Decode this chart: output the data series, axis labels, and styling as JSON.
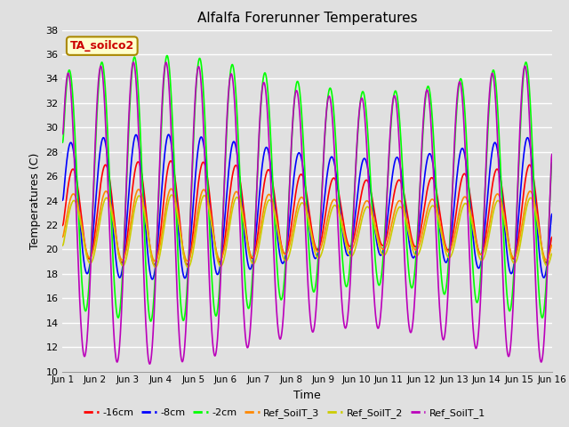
{
  "title": "Alfalfa Forerunner Temperatures",
  "xlabel": "Time",
  "ylabel": "Temperatures (C)",
  "ylim": [
    10,
    38
  ],
  "xlim": [
    0,
    15
  ],
  "annotation": "TA_soilco2",
  "annotation_color": "#cc0000",
  "annotation_bg": "#ffffcc",
  "annotation_border": "#aa8800",
  "background_color": "#e0e0e0",
  "plot_bg": "#e0e0e0",
  "grid_color": "#ffffff",
  "series": [
    {
      "label": "-16cm",
      "color": "#ff0000"
    },
    {
      "label": "-8cm",
      "color": "#0000ff"
    },
    {
      "label": "-2cm",
      "color": "#00ff00"
    },
    {
      "label": "Ref_SoilT_3",
      "color": "#ff8800"
    },
    {
      "label": "Ref_SoilT_2",
      "color": "#cccc00"
    },
    {
      "label": "Ref_SoilT_1",
      "color": "#bb00bb"
    }
  ],
  "xtick_labels": [
    "Jun 1",
    "Jun 2",
    "Jun 3",
    "Jun 4",
    "Jun 5",
    "Jun 6",
    "Jun 7",
    "Jun 8",
    "Jun 9",
    "Jun 10",
    "Jun 11",
    "Jun 12",
    "Jun 13",
    "Jun 14",
    "Jun 15",
    "Jun 16"
  ],
  "xtick_positions": [
    0,
    1,
    2,
    3,
    4,
    5,
    6,
    7,
    8,
    9,
    10,
    11,
    12,
    13,
    14,
    15
  ],
  "ytick_positions": [
    10,
    12,
    14,
    16,
    18,
    20,
    22,
    24,
    26,
    28,
    30,
    32,
    34,
    36,
    38
  ]
}
